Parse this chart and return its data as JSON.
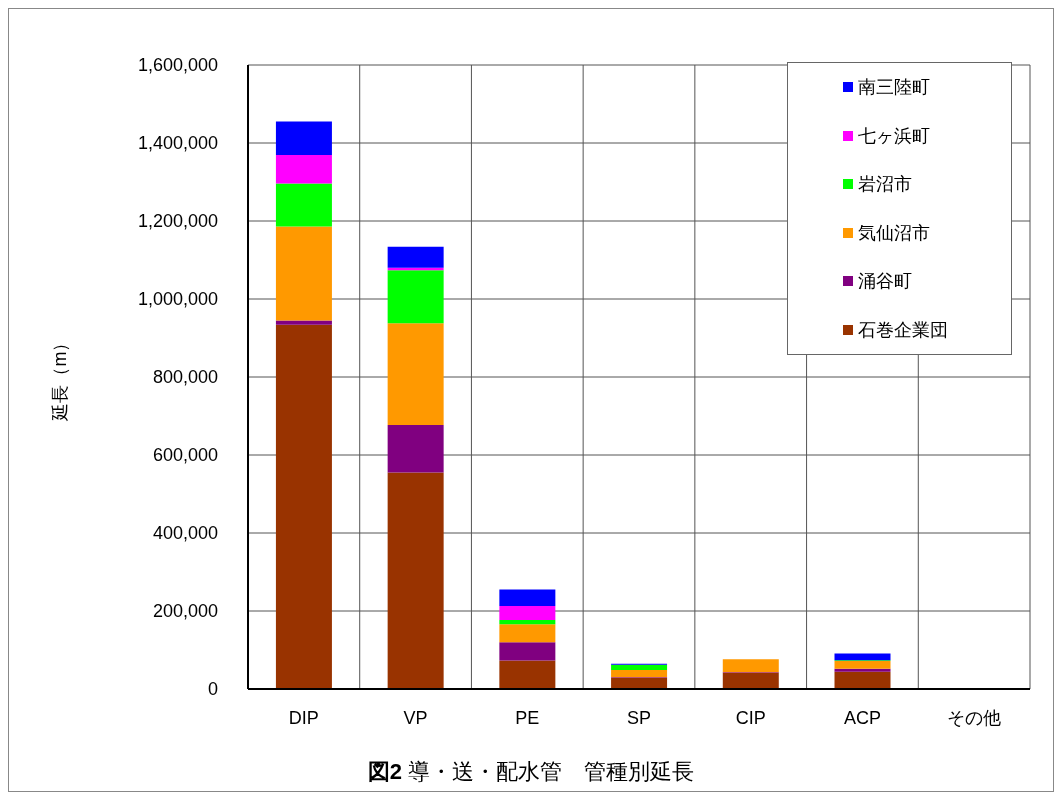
{
  "chart_data": {
    "type": "bar",
    "title": "図2 導・送・配水管　管種別延長",
    "ylabel": "延長（m）",
    "categories": [
      "DIP",
      "VP",
      "PE",
      "SP",
      "CIP",
      "ACP",
      "その他"
    ],
    "series": [
      {
        "name": "石巻企業団",
        "color": "#993300",
        "values": [
          934000,
          555000,
          73000,
          28000,
          41000,
          44000,
          null
        ]
      },
      {
        "name": "涌谷町",
        "color": "#800080",
        "values": [
          11000,
          122000,
          47000,
          2000,
          2000,
          8000,
          null
        ]
      },
      {
        "name": "気仙沼市",
        "color": "#ff9900",
        "values": [
          241000,
          261000,
          46000,
          19000,
          33000,
          20000,
          null
        ]
      },
      {
        "name": "岩沼市",
        "color": "#00ff00",
        "values": [
          110000,
          136000,
          11000,
          13000,
          null,
          2000,
          null
        ]
      },
      {
        "name": "七ヶ浜町",
        "color": "#ff00ff",
        "values": [
          73000,
          6000,
          36000,
          null,
          null,
          null,
          null
        ]
      },
      {
        "name": "南三陸町",
        "color": "#0000ff",
        "values": [
          86000,
          54000,
          42000,
          3000,
          null,
          17000,
          null
        ]
      }
    ],
    "stacked": true,
    "ylim": [
      0,
      1600000
    ],
    "yticks": [
      {
        "value": 0,
        "label": "0"
      },
      {
        "value": 200000,
        "label": "200,000"
      },
      {
        "value": 400000,
        "label": "400,000"
      },
      {
        "value": 600000,
        "label": "600,000"
      },
      {
        "value": 800000,
        "label": "800,000"
      },
      {
        "value": 1000000,
        "label": "1,000,000"
      },
      {
        "value": 1200000,
        "label": "1,200,000"
      },
      {
        "value": 1400000,
        "label": "1,400,000"
      },
      {
        "value": 1600000,
        "label": "1,600,000"
      }
    ],
    "grid": true,
    "legend": "top right"
  }
}
